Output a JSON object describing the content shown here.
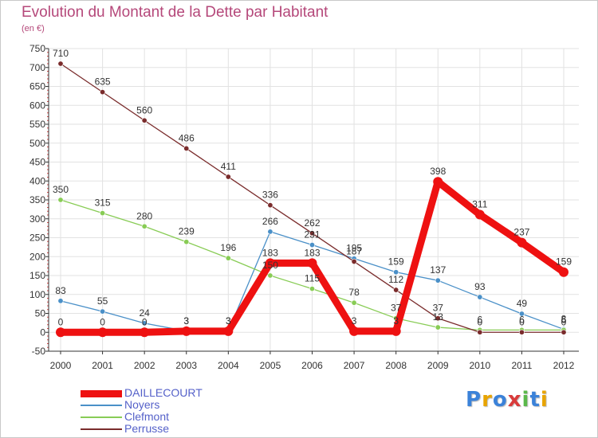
{
  "colors": {
    "title": "#b5487a",
    "grid": "#e2e2e2",
    "axis": "#333333",
    "tick_text": "#333333",
    "value_text": "#333333",
    "legend_text": "#5561c9"
  },
  "brand": {
    "letters": [
      "P",
      "r",
      "o",
      "x",
      "i",
      "t",
      "i"
    ],
    "colors": [
      "#3b82d9",
      "#e8a400",
      "#3b82d9",
      "#d93b3b",
      "#5ab84a",
      "#3b82d9",
      "#e8a400"
    ]
  },
  "chart_data": {
    "type": "line",
    "title": "Evolution du Montant de la Dette par Habitant",
    "subtitle": "(en €)",
    "xlabel": "",
    "ylabel": "",
    "ylim": [
      -50,
      750
    ],
    "yticks": [
      -50,
      0,
      50,
      100,
      150,
      200,
      250,
      300,
      350,
      400,
      450,
      500,
      550,
      600,
      650,
      700,
      750
    ],
    "grid": true,
    "legend_position": "bottom-left",
    "x": [
      "2000",
      "2001",
      "2002",
      "2003",
      "2004",
      "2005",
      "2006",
      "2007",
      "2008",
      "2009",
      "2010",
      "2011",
      "2012"
    ],
    "series": [
      {
        "name": "DAILLECOURT",
        "color": "#ee1111",
        "width": 9,
        "values": [
          0,
          0,
          0,
          3,
          3,
          183,
          183,
          3,
          3,
          398,
          311,
          237,
          159
        ],
        "labels": [
          "0",
          "0",
          "0",
          "3",
          "3",
          "183",
          "183",
          "3",
          "3",
          "398",
          "311",
          "237",
          "159"
        ]
      },
      {
        "name": "Noyers",
        "color": "#4a90c8",
        "width": 1.3,
        "values": [
          83,
          55,
          24,
          3,
          3,
          266,
          231,
          195,
          159,
          137,
          93,
          49,
          8
        ],
        "labels": [
          "83",
          "55",
          "24",
          "3",
          "3",
          "266",
          "231",
          "195",
          "159",
          "137",
          "93",
          "49",
          "8"
        ]
      },
      {
        "name": "Clefmont",
        "color": "#88cc55",
        "width": 1.3,
        "values": [
          350,
          315,
          280,
          239,
          196,
          150,
          115,
          78,
          37,
          13,
          6,
          6,
          6
        ],
        "labels": [
          "350",
          "315",
          "280",
          "239",
          "196",
          "150",
          "115",
          "78",
          "37",
          "13",
          "6",
          "6",
          "6"
        ]
      },
      {
        "name": "Perrusse",
        "color": "#7a2c2c",
        "width": 1.3,
        "values": [
          710,
          635,
          560,
          486,
          411,
          336,
          262,
          187,
          112,
          37,
          0,
          0,
          0
        ],
        "labels": [
          "710",
          "635",
          "560",
          "486",
          "411",
          "336",
          "262",
          "187",
          "112",
          "37",
          "0",
          "0",
          "0"
        ]
      }
    ]
  }
}
